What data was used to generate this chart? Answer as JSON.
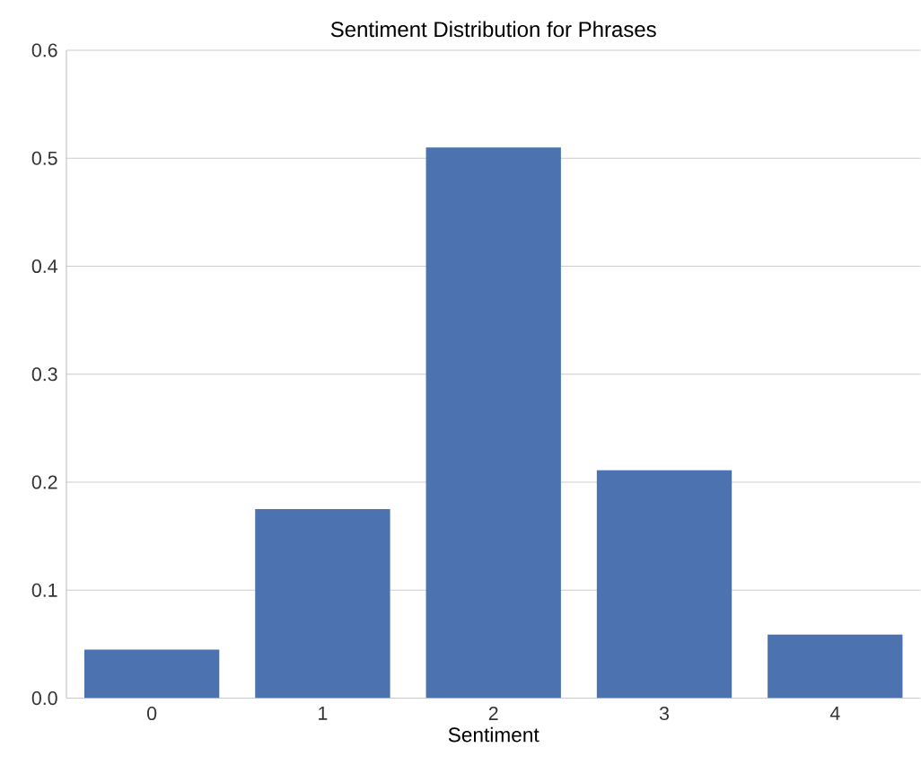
{
  "chart_data": {
    "type": "bar",
    "title": "Sentiment Distribution for Phrases",
    "xlabel": "Sentiment",
    "categories": [
      "0",
      "1",
      "2",
      "3",
      "4"
    ],
    "values": [
      0.045,
      0.175,
      0.51,
      0.211,
      0.059
    ],
    "color": "#4c72b0",
    "ylim": [
      0,
      0.6
    ],
    "yticks": [
      {
        "value": 0,
        "label": "0.0"
      },
      0.1,
      0.2,
      0.3,
      0.4,
      0.5,
      0.6
    ],
    "grid": "y"
  }
}
